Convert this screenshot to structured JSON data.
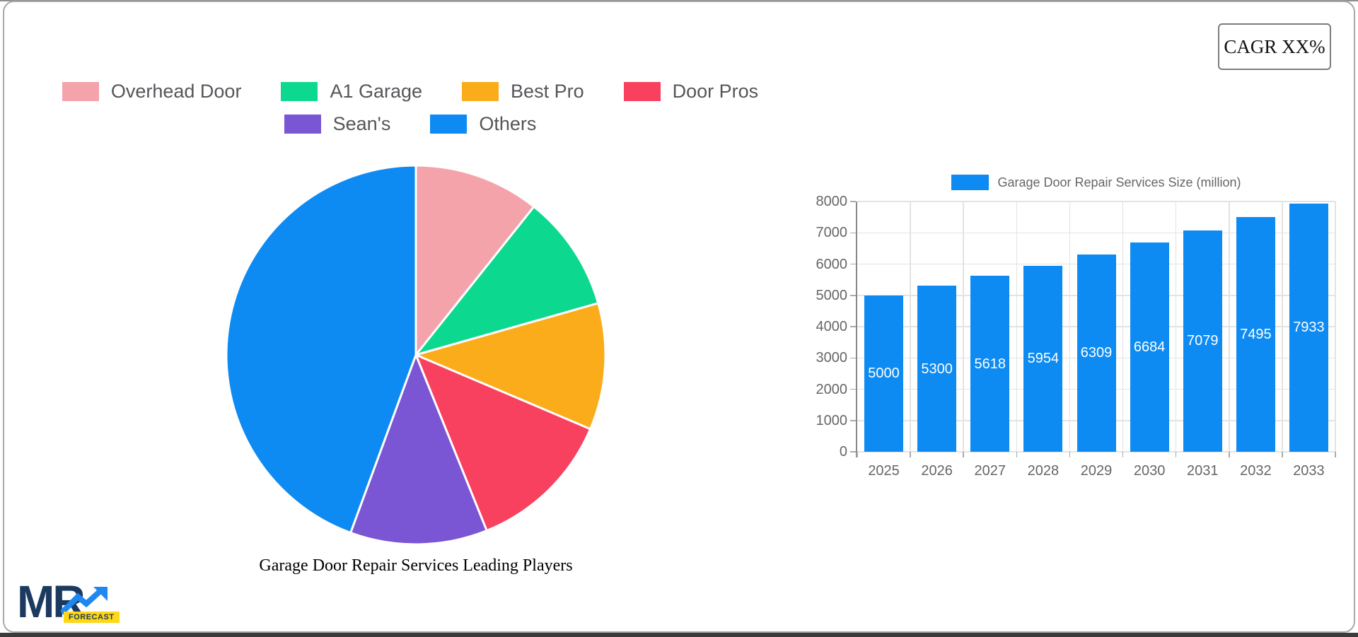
{
  "cagr_label": "CAGR XX%",
  "logo": {
    "mr": "MR",
    "forecast": "FORECAST"
  },
  "colors": {
    "accent_blue": "#0D8BF2",
    "legend_text": "#55565a",
    "axis_text": "#666666",
    "gridline": "#e3e3e3",
    "logo_navy": "#1c3a5f",
    "logo_yellow": "#ffd714"
  },
  "chart_data": [
    {
      "type": "pie",
      "title": "Garage Door Repair Services Leading Players",
      "labels": [
        "Overhead Door",
        "A1 Garage",
        "Best Pro",
        "Door Pros",
        "Sean's",
        "Others"
      ],
      "values": [
        10.7,
        9.9,
        10.8,
        12.5,
        11.7,
        44.4
      ],
      "colors": [
        "#F4A3AB",
        "#0CD98F",
        "#FBAC1B",
        "#F8405F",
        "#7A55D4",
        "#0D8BF2"
      ],
      "start_angle_deg": 0,
      "legend_position": "top",
      "legend_rows": [
        4,
        2
      ]
    },
    {
      "type": "bar",
      "legend_label": "Garage Door Repair Services Size (million)",
      "categories": [
        "2025",
        "2026",
        "2027",
        "2028",
        "2029",
        "2030",
        "2031",
        "2032",
        "2033"
      ],
      "values": [
        5000,
        5300,
        5618,
        5954,
        6309,
        6684,
        7079,
        7495,
        7933
      ],
      "bar_color": "#0D8BF2",
      "value_label_color": "#FFFFFF",
      "ylim": [
        0,
        8000
      ],
      "ytick_step": 1000,
      "grid": true,
      "legend_position": "top"
    }
  ]
}
